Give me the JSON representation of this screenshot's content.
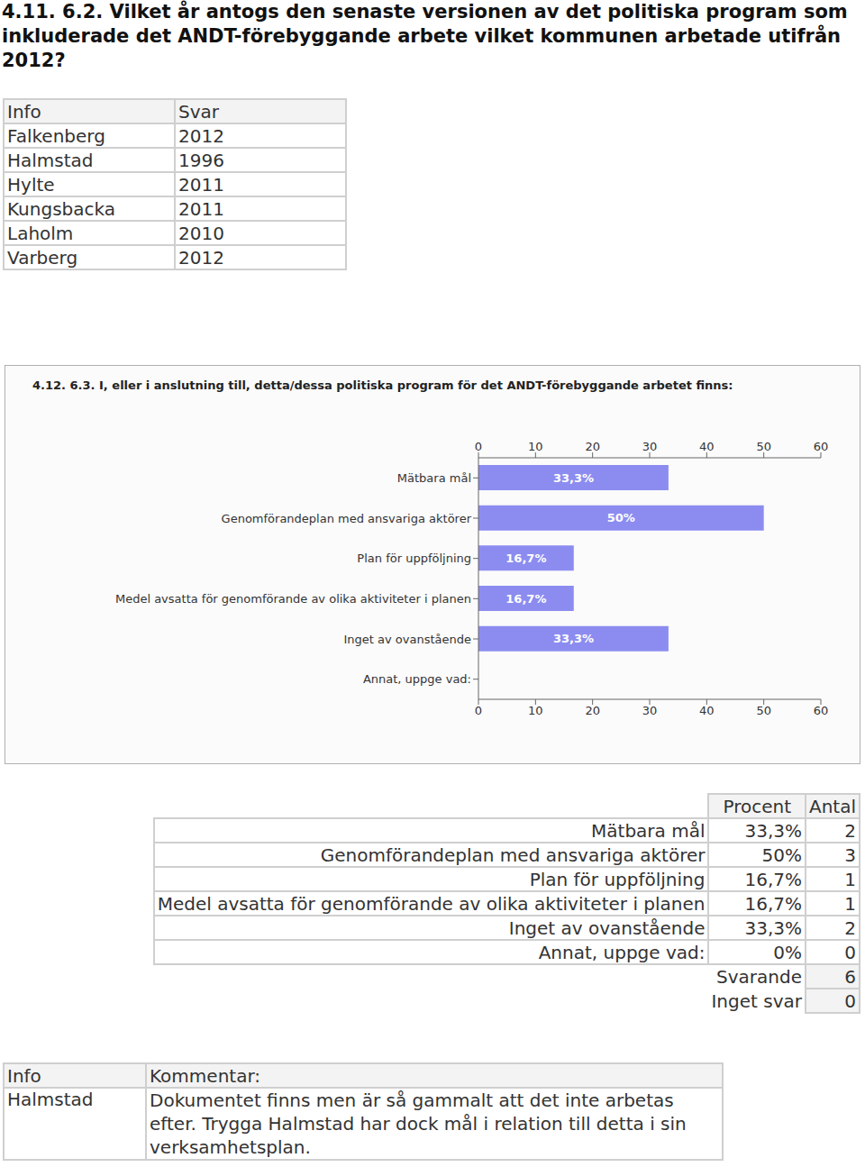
{
  "heading": "4.11. 6.2. Vilket år antogs den senaste versionen av det politiska program som inkluderade det ANDT-förebyggande arbete vilket kommunen arbetade utifrån 2012?",
  "table1": {
    "header": [
      "Info",
      "Svar"
    ],
    "rows": [
      [
        "Falkenberg",
        2012
      ],
      [
        "Halmstad",
        1996
      ],
      [
        "Hylte",
        2011
      ],
      [
        "Kungsbacka",
        2011
      ],
      [
        "Laholm",
        2010
      ],
      [
        "Varberg",
        2012
      ]
    ]
  },
  "chart_data": {
    "type": "bar",
    "title": "4.12. 6.3. I, eller i anslutning till, detta/dessa politiska program för det ANDT-förebyggande arbetet finns:",
    "orientation": "horizontal",
    "categories": [
      "Mätbara mål",
      "Genomförandeplan med ansvariga aktörer",
      "Plan för uppföljning",
      "Medel avsatta för genomförande av olika aktiviteter i planen",
      "Inget av ovanstående",
      "Annat, uppge vad:"
    ],
    "values": [
      33.3,
      50,
      16.7,
      16.7,
      33.3,
      0
    ],
    "value_labels": [
      "33,3%",
      "50%",
      "16,7%",
      "16,7%",
      "33,3%",
      null
    ],
    "data_labels": true,
    "color": "#8c8cf0",
    "xlim": [
      0,
      60
    ],
    "xticks": [
      0,
      10,
      20,
      30,
      40,
      50,
      60
    ],
    "grid": false
  },
  "table2": {
    "header": [
      "Procent",
      "Antal"
    ],
    "rows": [
      [
        "Mätbara mål",
        "33,3%",
        2
      ],
      [
        "Genomförandeplan med ansvariga aktörer",
        "50%",
        3
      ],
      [
        "Plan för uppföljning",
        "16,7%",
        1
      ],
      [
        "Medel avsatta för genomförande av olika aktiviteter i planen",
        "16,7%",
        1
      ],
      [
        "Inget av ovanstående",
        "33,3%",
        2
      ],
      [
        "Annat, uppge vad:",
        "0%",
        0
      ]
    ],
    "summary": [
      [
        "Svarande",
        6
      ],
      [
        "Inget svar",
        0
      ]
    ]
  },
  "comments": {
    "header": [
      "Info",
      "Kommentar:"
    ],
    "rows": [
      [
        "Halmstad",
        "Dokumentet finns men är så gammalt att det inte arbetas efter. Trygga Halmstad har dock mål i relation till detta i sin verksamhetsplan."
      ]
    ]
  }
}
